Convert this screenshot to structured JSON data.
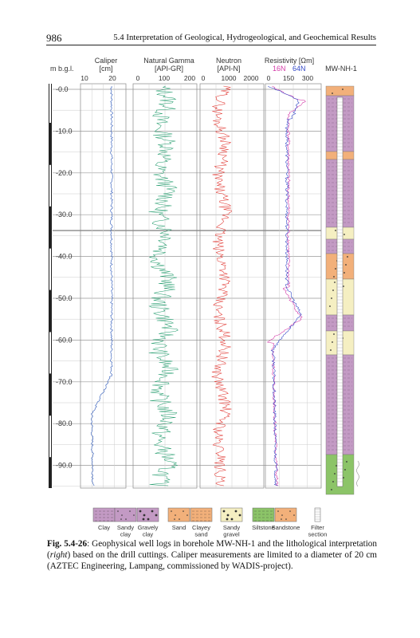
{
  "header": {
    "page_number": "986",
    "running_title": "5.4 Interpretation of Geological, Hydrogeological, and Geochemical Results"
  },
  "figure": {
    "depth_axis_label": "m b.g.l.",
    "depth_ticks": [
      "-0.0",
      "-10.0",
      "-20.0",
      "-30.0",
      "-40.0",
      "-50.0",
      "-60.0",
      "-70.0",
      "-80.0",
      "-90.0"
    ],
    "well_name": "MW-NH-1",
    "tracks": [
      {
        "name": "Caliper",
        "unit": "[cm]",
        "scale": [
          "10",
          "20"
        ],
        "color": "#2a56b8"
      },
      {
        "name": "Natural Gamma",
        "unit": "[API-GR]",
        "scale": [
          "0",
          "100",
          "200"
        ],
        "color": "#1f9a6a"
      },
      {
        "name": "Neutron",
        "unit": "[API-N]",
        "scale": [
          "0",
          "1000",
          "2000"
        ],
        "color": "#e0302a"
      },
      {
        "name": "Resistivity [Ωm]",
        "unit_16": "16N",
        "unit_64": "64N",
        "scale": [
          "0",
          "150",
          "300"
        ],
        "color_16": "#d43aa8",
        "color_64": "#3348c8"
      }
    ],
    "lithology_colors": {
      "clay": "#c39ac4",
      "sand": "#f2b07a",
      "gravel": "#f5efc2",
      "silt_sand": "#8cc468"
    },
    "legend": [
      {
        "label": "Clay",
        "color": "#c39ac4",
        "pattern": "lines"
      },
      {
        "label": "Sandy\nclay",
        "color": "#c39ac4",
        "pattern": "dots"
      },
      {
        "label": "Gravely\nclay",
        "color": "#c39ac4",
        "pattern": "bigdots"
      },
      {
        "label": "Sand",
        "color": "#f2b07a",
        "pattern": "dots"
      },
      {
        "label": "Clayey\nsand",
        "color": "#f2b07a",
        "pattern": "lines"
      },
      {
        "label": "Sandy\ngravel",
        "color": "#f5efc2",
        "pattern": "bigdots"
      },
      {
        "label": "Siltstone",
        "color": "#8cc468",
        "pattern": "lines"
      },
      {
        "label": "Sandstone",
        "color": "#f2b07a",
        "pattern": "dots"
      },
      {
        "label": "Filter\nsection",
        "color": "#ffffff",
        "pattern": "filter"
      }
    ]
  },
  "caption": {
    "label": "Fig. 5.4-26",
    "text_before_right": ": Geophysical well logs in borehole MW-NH-1 and the lithological interpretation (",
    "right_word": "right",
    "text_after_right": ") based on the drill cuttings. Caliper measurements are limited to a diameter of 20 cm (AZTEC Engineering, Lampang, commissioned by WADIS-project)."
  }
}
